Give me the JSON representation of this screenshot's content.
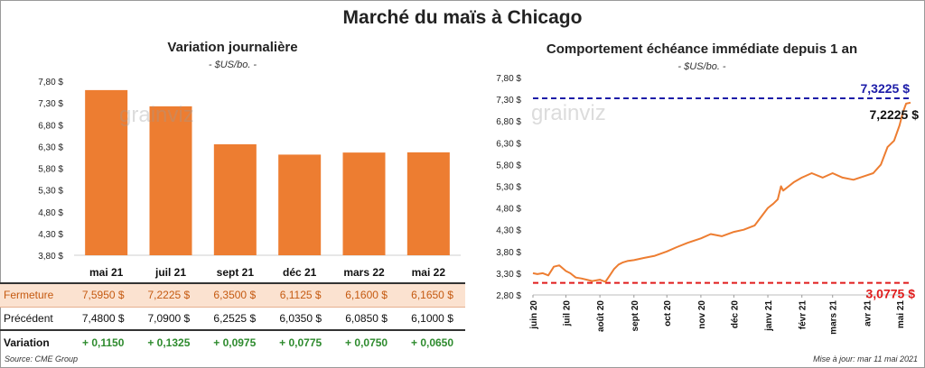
{
  "title": "Marché du maïs à Chicago",
  "left": {
    "title": "Variation journalière",
    "subtitle": "- $US/bo. -",
    "watermark": "grainviz",
    "table": {
      "rows": [
        {
          "label": "Fermeture",
          "values": [
            "7,5950 $",
            "7,2225 $",
            "6,3500 $",
            "6,1125 $",
            "6,1600 $",
            "6,1650 $"
          ]
        },
        {
          "label": "Précédent",
          "values": [
            "7,4800 $",
            "7,0900 $",
            "6,2525 $",
            "6,0350 $",
            "6,0850 $",
            "6,1000 $"
          ]
        },
        {
          "label": "Variation",
          "values": [
            "+ 0,1150",
            "+ 0,1325",
            "+ 0,0975",
            "+ 0,0775",
            "+ 0,0750",
            "+ 0,0650"
          ]
        }
      ]
    }
  },
  "right": {
    "title": "Comportement échéance immédiate depuis 1 an",
    "subtitle": "- $US/bo. -",
    "watermark": "grainviz"
  },
  "source": "Source: CME Group",
  "updated": "Mise à jour: mar 11 mai 2021",
  "colors": {
    "bar": "#ed7d31",
    "line": "#ed7d31",
    "high": "#1c1ca8",
    "low": "#e01b1b"
  },
  "chart_data": [
    {
      "type": "bar",
      "categories": [
        "mai 21",
        "juil 21",
        "sept 21",
        "déc 21",
        "mars 22",
        "mai 22"
      ],
      "values": [
        7.595,
        7.2225,
        6.35,
        6.1125,
        6.16,
        6.165
      ],
      "ylim": [
        3.8,
        7.8
      ],
      "yticks": [
        3.8,
        4.3,
        4.8,
        5.3,
        5.8,
        6.3,
        6.8,
        7.3,
        7.8
      ],
      "ytick_labels": [
        "3,80 $",
        "4,30 $",
        "4,80 $",
        "5,30 $",
        "5,80 $",
        "6,30 $",
        "6,80 $",
        "7,30 $",
        "7,80 $"
      ]
    },
    {
      "type": "line",
      "x": [
        "2020-06-01",
        "2020-06-05",
        "2020-06-10",
        "2020-06-15",
        "2020-06-20",
        "2020-06-25",
        "2020-07-01",
        "2020-07-05",
        "2020-07-10",
        "2020-07-15",
        "2020-07-20",
        "2020-07-25",
        "2020-08-01",
        "2020-08-06",
        "2020-08-10",
        "2020-08-14",
        "2020-08-18",
        "2020-08-22",
        "2020-08-26",
        "2020-09-01",
        "2020-09-10",
        "2020-09-20",
        "2020-10-01",
        "2020-10-10",
        "2020-10-20",
        "2020-11-01",
        "2020-11-10",
        "2020-11-20",
        "2020-12-01",
        "2020-12-10",
        "2020-12-20",
        "2021-01-01",
        "2021-01-06",
        "2021-01-10",
        "2021-01-13",
        "2021-01-15",
        "2021-01-20",
        "2021-01-25",
        "2021-02-01",
        "2021-02-10",
        "2021-02-20",
        "2021-03-01",
        "2021-03-10",
        "2021-03-20",
        "2021-04-01",
        "2021-04-07",
        "2021-04-14",
        "2021-04-20",
        "2021-04-26",
        "2021-05-01",
        "2021-05-04",
        "2021-05-07",
        "2021-05-11"
      ],
      "y": [
        3.3,
        3.28,
        3.3,
        3.25,
        3.45,
        3.48,
        3.35,
        3.3,
        3.2,
        3.18,
        3.15,
        3.12,
        3.15,
        3.1,
        3.25,
        3.4,
        3.5,
        3.55,
        3.58,
        3.6,
        3.65,
        3.7,
        3.8,
        3.9,
        4.0,
        4.1,
        4.2,
        4.15,
        4.25,
        4.3,
        4.4,
        4.8,
        4.9,
        5.0,
        5.3,
        5.2,
        5.3,
        5.4,
        5.5,
        5.6,
        5.5,
        5.6,
        5.5,
        5.45,
        5.55,
        5.6,
        5.8,
        6.2,
        6.35,
        6.7,
        7.0,
        7.2,
        7.2225
      ],
      "ylim": [
        2.8,
        7.8
      ],
      "yticks": [
        2.8,
        3.3,
        3.8,
        4.3,
        4.8,
        5.3,
        5.8,
        6.3,
        6.8,
        7.3,
        7.8
      ],
      "ytick_labels": [
        "2,80 $",
        "3,30 $",
        "3,80 $",
        "4,30 $",
        "4,80 $",
        "5,30 $",
        "5,80 $",
        "6,30 $",
        "6,80 $",
        "7,30 $",
        "7,80 $"
      ],
      "xticks": [
        "juin 20",
        "juil 20",
        "août 20",
        "sept 20",
        "oct 20",
        "nov 20",
        "déc 20",
        "janv 21",
        "févr 21",
        "mars 21",
        "avr 21",
        "mai 21"
      ],
      "high": {
        "value": 7.3225,
        "label": "7,3225 $"
      },
      "low": {
        "value": 3.0775,
        "label": "3,0775 $"
      },
      "last": {
        "value": 7.2225,
        "label": "7,2225 $"
      }
    }
  ]
}
